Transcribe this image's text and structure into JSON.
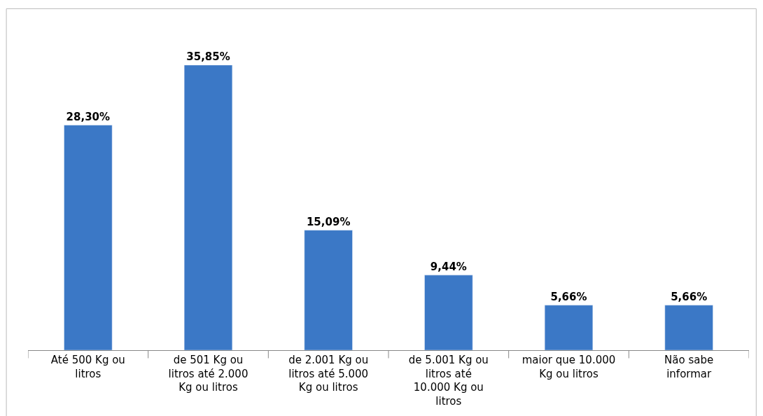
{
  "chart_data": {
    "type": "bar",
    "categories": [
      "Até 500 Kg ou litros",
      "de 501 Kg ou litros até 2.000 Kg ou litros",
      "de 2.001 Kg ou litros até 5.000 Kg ou litros",
      "de 5.001 Kg ou litros até 10.000 Kg ou litros",
      "maior que 10.000 Kg ou litros",
      "Não sabe informar"
    ],
    "values": [
      28.3,
      35.85,
      15.09,
      9.44,
      5.66,
      5.66
    ],
    "value_labels": [
      "28,30%",
      "35,85%",
      "15,09%",
      "9,44%",
      "5,66%",
      "5,66%"
    ],
    "color": "#3b78c6"
  }
}
